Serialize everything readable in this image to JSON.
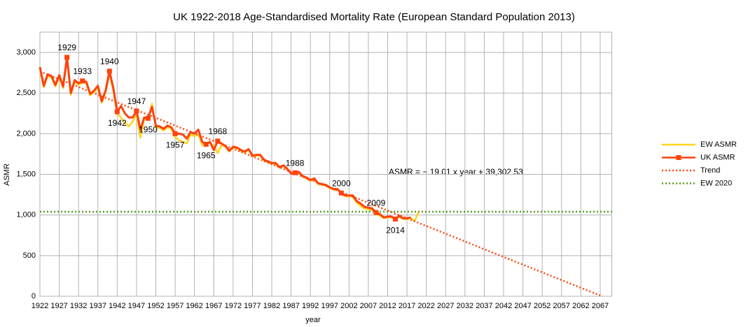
{
  "chart_data": {
    "type": "line",
    "title": "UK 1922-2018 Age-Standardised Mortality Rate (European Standard Population 2013)",
    "x_label": "year",
    "y_label": "ASMR",
    "equation": "ASMR = − 19.01 x year + 39,302.53",
    "annotations": [
      "1929",
      "1933",
      "1940",
      "1942",
      "1947",
      "1950",
      "1957",
      "1965",
      "1968",
      "1988",
      "2000",
      "2009",
      "2014"
    ],
    "xlim": [
      1922,
      2070
    ],
    "ylim": [
      0,
      3250
    ],
    "xticks": [
      1922,
      1927,
      1932,
      1937,
      1942,
      1947,
      1952,
      1957,
      1962,
      1967,
      1972,
      1977,
      1982,
      1987,
      1992,
      1997,
      2002,
      2007,
      2012,
      2017,
      2022,
      2027,
      2032,
      2037,
      2042,
      2047,
      2052,
      2057,
      2062,
      2067
    ],
    "yticks": [
      0,
      500,
      {
        "value": 1000,
        "label": "1,000"
      },
      {
        "value": 1500,
        "label": "1,500"
      },
      {
        "value": 2000,
        "label": "2,000"
      },
      {
        "value": 2500,
        "label": "2,500"
      },
      {
        "value": 3000,
        "label": "3,000"
      }
    ],
    "grid": true,
    "legend": "right",
    "series": [
      {
        "name": "EW ASMR",
        "color": "#ffd320",
        "style": "solid",
        "x": [
          1922,
          1923,
          1924,
          1925,
          1926,
          1927,
          1928,
          1929,
          1930,
          1931,
          1932,
          1933,
          1934,
          1935,
          1936,
          1937,
          1938,
          1939,
          1940,
          1941,
          1942,
          1943,
          1944,
          1945,
          1946,
          1947,
          1948,
          1949,
          1950,
          1951,
          1952,
          1953,
          1954,
          1955,
          1956,
          1957,
          1958,
          1959,
          1960,
          1961,
          1962,
          1963,
          1964,
          1965,
          1966,
          1967,
          1968,
          1969,
          1970,
          1971,
          1972,
          1973,
          1974,
          1975,
          1976,
          1977,
          1978,
          1979,
          1980,
          1981,
          1982,
          1983,
          1984,
          1985,
          1986,
          1987,
          1988,
          1989,
          1990,
          1991,
          1992,
          1993,
          1994,
          1995,
          1996,
          1997,
          1998,
          1999,
          2000,
          2001,
          2002,
          2003,
          2004,
          2005,
          2006,
          2007,
          2008,
          2009,
          2010,
          2011,
          2012,
          2013,
          2014,
          2015,
          2016,
          2017,
          2018,
          2019,
          2020
        ],
        "values": [
          2800,
          2570,
          2710,
          2690,
          2580,
          2700,
          2560,
          2920,
          2480,
          2640,
          2600,
          2630,
          2620,
          2470,
          2510,
          2570,
          2380,
          2510,
          2740,
          2530,
          2240,
          2200,
          2130,
          2090,
          2150,
          2240,
          1950,
          2180,
          2170,
          2370,
          2080,
          2070,
          2040,
          2080,
          2060,
          1960,
          1920,
          1900,
          1880,
          1990,
          1970,
          1990,
          1860,
          1880,
          1890,
          1850,
          1760,
          1860,
          1840,
          1780,
          1830,
          1820,
          1790,
          1770,
          1800,
          1720,
          1730,
          1730,
          1670,
          1650,
          1630,
          1630,
          1580,
          1600,
          1560,
          1520,
          1510,
          1520,
          1470,
          1450,
          1420,
          1440,
          1380,
          1370,
          1360,
          1330,
          1310,
          1310,
          1260,
          1230,
          1230,
          1220,
          1150,
          1110,
          1080,
          1070,
          1060,
          1010,
          990,
          960,
          970,
          970,
          940,
          980,
          950,
          950,
          960,
          925,
          1040
        ]
      },
      {
        "name": "UK ASMR",
        "color": "#ff420e",
        "style": "solid",
        "x": [
          1922,
          1923,
          1924,
          1925,
          1926,
          1927,
          1928,
          1929,
          1930,
          1931,
          1932,
          1933,
          1934,
          1935,
          1936,
          1937,
          1938,
          1939,
          1940,
          1941,
          1942,
          1943,
          1944,
          1945,
          1946,
          1947,
          1948,
          1949,
          1950,
          1951,
          1952,
          1953,
          1954,
          1955,
          1956,
          1957,
          1958,
          1959,
          1960,
          1961,
          1962,
          1963,
          1964,
          1965,
          1966,
          1967,
          1968,
          1969,
          1970,
          1971,
          1972,
          1973,
          1974,
          1975,
          1976,
          1977,
          1978,
          1979,
          1980,
          1981,
          1982,
          1983,
          1984,
          1985,
          1986,
          1987,
          1988,
          1989,
          1990,
          1991,
          1992,
          1993,
          1994,
          1995,
          1996,
          1997,
          1998,
          1999,
          2000,
          2001,
          2002,
          2003,
          2004,
          2005,
          2006,
          2007,
          2008,
          2009,
          2010,
          2011,
          2012,
          2013,
          2014,
          2015,
          2016,
          2017,
          2018
        ],
        "values": [
          2820,
          2590,
          2730,
          2710,
          2600,
          2720,
          2580,
          2940,
          2500,
          2660,
          2620,
          2650,
          2640,
          2490,
          2530,
          2590,
          2400,
          2530,
          2770,
          2560,
          2270,
          2340,
          2250,
          2200,
          2200,
          2280,
          2050,
          2200,
          2190,
          2330,
          2100,
          2090,
          2060,
          2100,
          2080,
          2000,
          2000,
          1990,
          1940,
          2020,
          2000,
          2050,
          1900,
          1870,
          1900,
          1800,
          1910,
          1880,
          1850,
          1790,
          1840,
          1830,
          1800,
          1780,
          1810,
          1730,
          1740,
          1740,
          1680,
          1660,
          1640,
          1640,
          1590,
          1610,
          1570,
          1510,
          1520,
          1530,
          1480,
          1460,
          1430,
          1450,
          1390,
          1380,
          1370,
          1340,
          1320,
          1320,
          1270,
          1240,
          1240,
          1240,
          1170,
          1140,
          1100,
          1090,
          1080,
          1030,
          1010,
          970,
          980,
          980,
          950,
          990,
          960,
          960,
          970
        ]
      },
      {
        "name": "Trend",
        "color": "#ff420e",
        "style": "dotted",
        "x": [
          1922,
          2067
        ],
        "values": [
          2765.31,
          8.86
        ]
      },
      {
        "name": "EW 2020",
        "color": "#579d1c",
        "style": "dotted",
        "x": [
          1922,
          2070
        ],
        "values": [
          1040,
          1040
        ]
      }
    ]
  }
}
